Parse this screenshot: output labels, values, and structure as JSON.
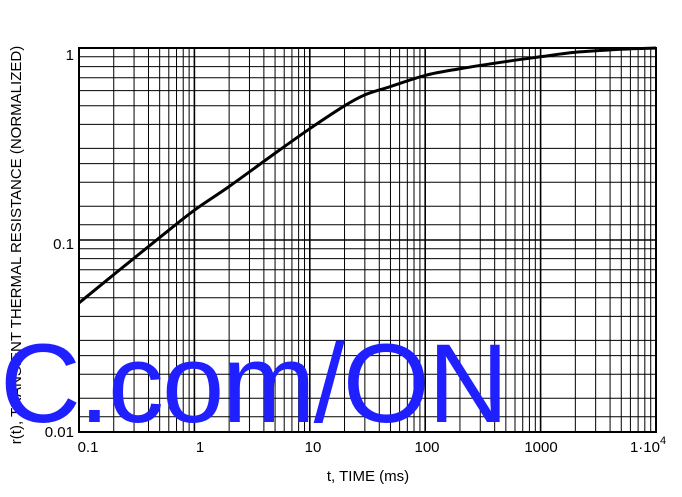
{
  "chart_data": {
    "type": "line",
    "title": "",
    "xlabel": "t, TIME (ms)",
    "ylabel": "r(t), TRANSIENT THERMAL RESISTANCE  (NORMALIZED)",
    "xscale": "log",
    "yscale": "log",
    "xlim": [
      0.1,
      10000
    ],
    "ylim": [
      0.01,
      1
    ],
    "grid": true,
    "x_tick_labels": [
      "0.1",
      "1",
      "10",
      "100",
      "1000",
      "1·10",
      "4"
    ],
    "y_tick_labels": [
      "0.01",
      "0.1",
      "1"
    ],
    "series": [
      {
        "color": "#000000",
        "x": [
          0.1,
          0.2,
          0.5,
          1,
          2,
          5,
          10,
          20,
          30,
          50,
          100,
          200,
          500,
          1000,
          2000,
          5000,
          10000
        ],
        "y": [
          0.047,
          0.066,
          0.103,
          0.143,
          0.19,
          0.283,
          0.38,
          0.5,
          0.57,
          0.63,
          0.72,
          0.78,
          0.85,
          0.9,
          0.95,
          0.985,
          1.0
        ]
      }
    ]
  },
  "watermark_text": "C.com/ON",
  "colors": {
    "watermark": "#1f1fff",
    "line": "#000000",
    "grid": "#000000"
  }
}
